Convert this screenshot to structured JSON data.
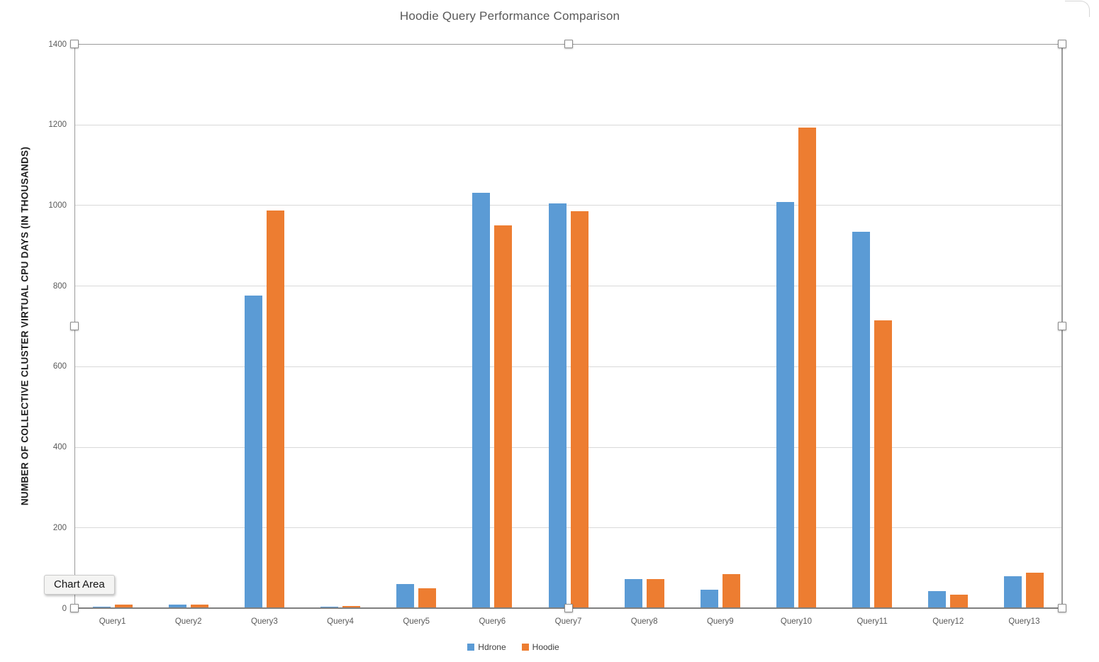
{
  "tooltip": {
    "label": "Chart Area"
  },
  "colors": {
    "hdrone_blue": "#5B9BD5",
    "hoodie_orange": "#ED7D31",
    "title_gray": "#595959",
    "gridline_gray": "#D9D9D9",
    "axis_gray": "#7F7F7F"
  },
  "chart_data": {
    "type": "bar",
    "title": "Hoodie Query Performance Comparison",
    "xlabel": "",
    "ylabel": "NUMBER OF COLLECTIVE CLUSTER VIRTUAL CPU DAYS (IN THOUSANDS)",
    "categories": [
      "Query1",
      "Query2",
      "Query3",
      "Query4",
      "Query5",
      "Query6",
      "Query7",
      "Query8",
      "Query9",
      "Query10",
      "Query11",
      "Query12",
      "Query13"
    ],
    "series": [
      {
        "name": "Hdrone",
        "color": "#5B9BD5",
        "values": [
          4,
          8,
          775,
          4,
          60,
          1031,
          1004,
          72,
          46,
          1008,
          934,
          42,
          79
        ]
      },
      {
        "name": "Hoodie",
        "color": "#ED7D31",
        "values": [
          9,
          8,
          987,
          5,
          49,
          950,
          985,
          72,
          85,
          1193,
          714,
          33,
          88
        ]
      }
    ],
    "ylim": [
      0,
      1400
    ],
    "yticks": [
      0,
      200,
      400,
      600,
      800,
      1000,
      1200,
      1400
    ],
    "grid": true,
    "legend_position": "bottom"
  }
}
